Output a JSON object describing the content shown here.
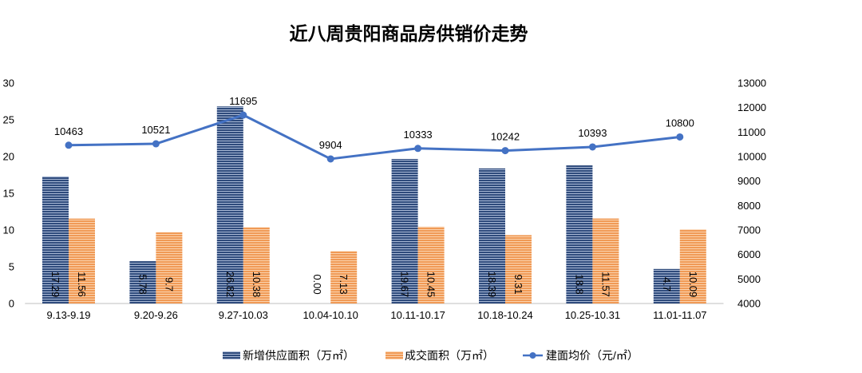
{
  "chart_data": {
    "type": "bar",
    "title": "近八周贵阳商品房供销价走势",
    "categories": [
      "9.13-9.19",
      "9.20-9.26",
      "9.27-10.03",
      "10.04-10.10",
      "10.11-10.17",
      "10.18-10.24",
      "10.25-10.31",
      "11.01-11.07"
    ],
    "series": [
      {
        "name": "新增供应面积（万㎡）",
        "type": "bar",
        "axis": "left",
        "color": "#2F4B7C",
        "stripe_color": "#A9B9D6",
        "values": [
          17.29,
          5.78,
          26.82,
          0.0,
          19.67,
          18.39,
          18.8,
          4.7
        ],
        "labels": [
          "17.29",
          "5.78",
          "26.82",
          "0.00",
          "19.67",
          "18.39",
          "18.8",
          "4.7"
        ]
      },
      {
        "name": "成交面积（万㎡）",
        "type": "bar",
        "axis": "left",
        "color": "#F09A56",
        "stripe_color": "#FBD3AE",
        "values": [
          11.56,
          9.7,
          10.38,
          7.13,
          10.45,
          9.31,
          11.57,
          10.09
        ],
        "labels": [
          "11.56",
          "9.7",
          "10.38",
          "7.13",
          "10.45",
          "9.31",
          "11.57",
          "10.09"
        ]
      },
      {
        "name": "建面均价（元/㎡）",
        "type": "line",
        "axis": "right",
        "color": "#4472C4",
        "values": [
          10463,
          10521,
          11695,
          9904,
          10333,
          10242,
          10393,
          10800
        ],
        "labels": [
          "10463",
          "10521",
          "11695",
          "9904",
          "10333",
          "10242",
          "10393",
          "10800"
        ]
      }
    ],
    "ylim": [
      0,
      30
    ],
    "yticks": [
      "0",
      "5",
      "10",
      "15",
      "20",
      "25",
      "30"
    ],
    "y2lim": [
      4000,
      13000
    ],
    "y2ticks": [
      "4000",
      "5000",
      "6000",
      "7000",
      "8000",
      "9000",
      "10000",
      "11000",
      "12000",
      "13000"
    ],
    "grid": false,
    "legend_position": "bottom",
    "axis_color": "#BFBFBF"
  }
}
